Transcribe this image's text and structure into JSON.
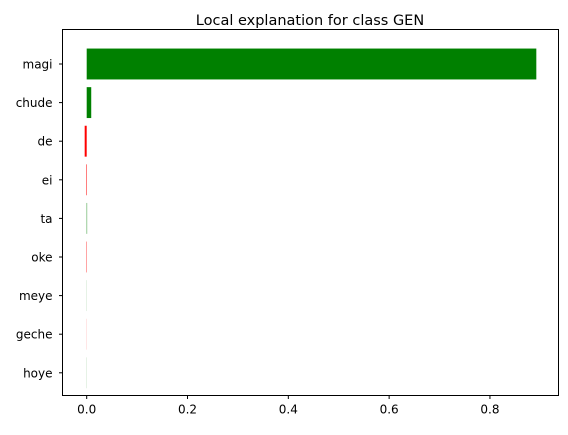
{
  "chart_data": {
    "type": "bar",
    "orientation": "horizontal",
    "title": "Local explanation for class GEN",
    "xlabel": "",
    "ylabel": "",
    "categories": [
      "magi",
      "chude",
      "de",
      "ei",
      "ta",
      "oke",
      "meye",
      "geche",
      "hoye"
    ],
    "values": [
      0.892,
      0.009,
      -0.004,
      -0.001,
      0.0008,
      -0.0007,
      0.0001,
      -0.0001,
      0.0001
    ],
    "xlim": [
      -0.048,
      0.936
    ],
    "xticks": [
      0.0,
      0.2,
      0.4,
      0.6,
      0.8
    ],
    "xtick_labels": [
      "0.0",
      "0.2",
      "0.4",
      "0.6",
      "0.8"
    ],
    "colors": {
      "positive": "#008000",
      "negative": "#ff0000"
    },
    "grid": false,
    "legend": "none"
  }
}
